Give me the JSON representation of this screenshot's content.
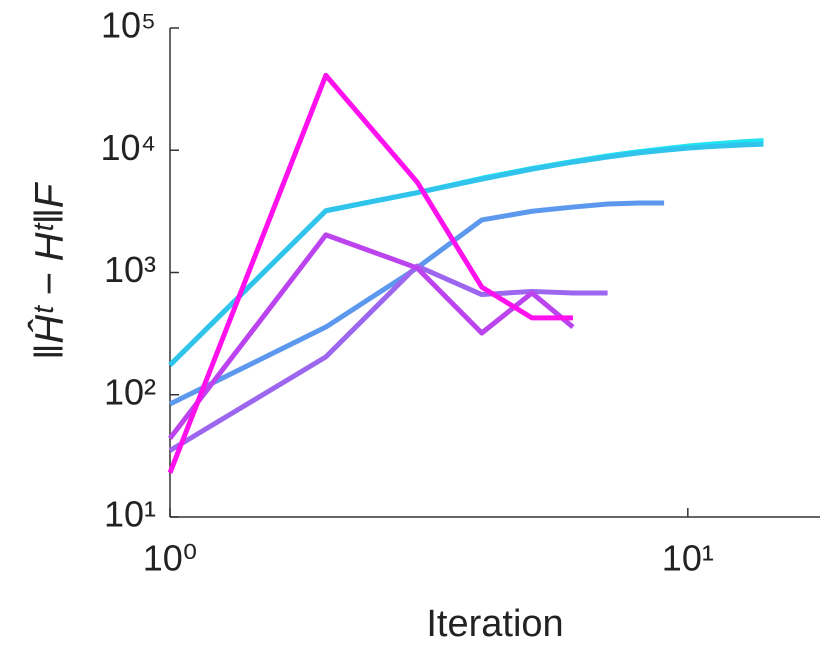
{
  "chart_data": {
    "type": "line",
    "x_label": "Iteration",
    "y_label": "‖Ĥᵗ − Hᵗ‖F",
    "xscale": "log",
    "yscale": "log",
    "xlim": [
      1,
      18
    ],
    "ylim": [
      10,
      100000
    ],
    "xticks": [
      {
        "value": 1,
        "label": "10⁰"
      },
      {
        "value": 10,
        "label": "10¹"
      }
    ],
    "yticks": [
      {
        "value": 10,
        "label": "10¹"
      },
      {
        "value": 100,
        "label": "10²"
      },
      {
        "value": 1000,
        "label": "10³"
      },
      {
        "value": 10000,
        "label": "10⁴"
      },
      {
        "value": 100000,
        "label": "10⁵"
      }
    ],
    "grid": false,
    "series": [
      {
        "color": "#20e4f2",
        "x": [
          1,
          2,
          3,
          4,
          5,
          6,
          7,
          8,
          9,
          10,
          11,
          12,
          13,
          14
        ],
        "values": [
          175,
          3200,
          4500,
          5900,
          7100,
          8100,
          9000,
          9700,
          10300,
          10800,
          11200,
          11500,
          11800,
          12000
        ]
      },
      {
        "color": "#30c4ec",
        "x": [
          1,
          2,
          3,
          4,
          5,
          6,
          7,
          8,
          9,
          10,
          11,
          12,
          13,
          14
        ],
        "values": [
          175,
          3200,
          4500,
          5800,
          7000,
          8000,
          8800,
          9500,
          10000,
          10400,
          10700,
          10900,
          11100,
          11200
        ]
      },
      {
        "color": "#5c99ee",
        "x": [
          1,
          2,
          3,
          4,
          5,
          6,
          7,
          8,
          9
        ],
        "values": [
          84,
          358,
          1090,
          2690,
          3170,
          3430,
          3630,
          3700,
          3700
        ]
      },
      {
        "color": "#9c66ee",
        "x": [
          1,
          2,
          3,
          4,
          5,
          6,
          7
        ],
        "values": [
          35,
          204,
          1130,
          660,
          700,
          680,
          680
        ]
      },
      {
        "color": "#bb44ee",
        "x": [
          1,
          2,
          3,
          4,
          5,
          6
        ],
        "values": [
          44,
          2030,
          1090,
          320,
          680,
          358
        ]
      },
      {
        "color": "#ff11ee",
        "x": [
          1,
          2,
          3,
          4,
          5,
          6
        ],
        "values": [
          23,
          41000,
          5500,
          760,
          425,
          425
        ]
      }
    ]
  }
}
